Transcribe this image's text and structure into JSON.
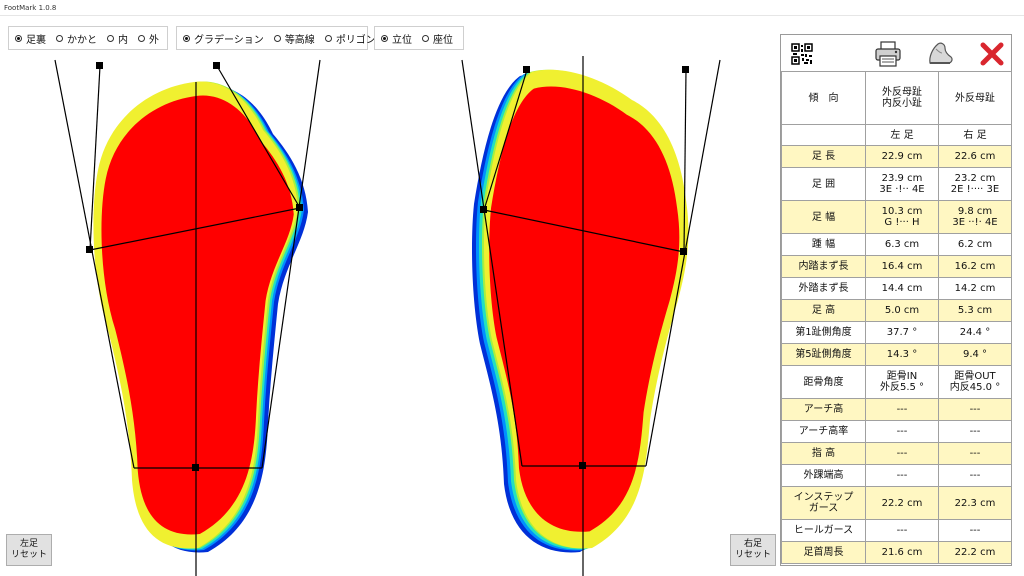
{
  "window": {
    "title": "FootMark 1.0.8"
  },
  "view_options": [
    {
      "label": "足裏",
      "selected": true
    },
    {
      "label": "かかと",
      "selected": false
    },
    {
      "label": "内",
      "selected": false
    },
    {
      "label": "外",
      "selected": false
    }
  ],
  "display_options": [
    {
      "label": "グラデーション",
      "selected": true
    },
    {
      "label": "等高線",
      "selected": false
    },
    {
      "label": "ポリゴン",
      "selected": false
    }
  ],
  "posture_options": [
    {
      "label": "立位",
      "selected": true
    },
    {
      "label": "座位",
      "selected": false
    }
  ],
  "buttons": {
    "left_reset": [
      "左足",
      "リセット"
    ],
    "right_reset": [
      "右足",
      "リセット"
    ]
  },
  "toolbar_icons": [
    "qr-code-icon",
    "print-icon",
    "shoe-icon",
    "close-icon"
  ],
  "colors": {
    "close_red": "#d9262e",
    "highlight_row": "#fff7c2",
    "foot_fill": "#ff0000"
  },
  "table": {
    "header": {
      "label": "傾　向",
      "left": [
        "外反母趾",
        "内反小趾"
      ],
      "right": [
        "外反母趾"
      ]
    },
    "sides": {
      "label": "",
      "left": "左 足",
      "right": "右 足"
    },
    "rows": [
      {
        "label": "足 長",
        "left": [
          "22.9 cm"
        ],
        "right": [
          "22.6 cm"
        ],
        "highlight": true
      },
      {
        "label": "足 囲",
        "left": [
          "23.9 cm",
          "3E ·!·· 4E"
        ],
        "right": [
          "23.2 cm",
          "2E !···· 3E"
        ],
        "highlight": false
      },
      {
        "label": "足 幅",
        "left": [
          "10.3 cm",
          "G !··· H"
        ],
        "right": [
          "9.8 cm",
          "3E ··!· 4E"
        ],
        "highlight": true
      },
      {
        "label": "踵 幅",
        "left": [
          "6.3 cm"
        ],
        "right": [
          "6.2 cm"
        ],
        "highlight": false
      },
      {
        "label": "内踏まず長",
        "left": [
          "16.4 cm"
        ],
        "right": [
          "16.2 cm"
        ],
        "highlight": true
      },
      {
        "label": "外踏まず長",
        "left": [
          "14.4 cm"
        ],
        "right": [
          "14.2 cm"
        ],
        "highlight": false
      },
      {
        "label": "足 高",
        "left": [
          "5.0 cm"
        ],
        "right": [
          "5.3 cm"
        ],
        "highlight": true
      },
      {
        "label": "第1趾側角度",
        "left": [
          "37.7 °"
        ],
        "right": [
          "24.4 °"
        ],
        "highlight": false
      },
      {
        "label": "第5趾側角度",
        "left": [
          "14.3 °"
        ],
        "right": [
          "9.4 °"
        ],
        "highlight": true
      },
      {
        "label": "距骨角度",
        "left": [
          "距骨IN",
          "外反5.5 °"
        ],
        "right": [
          "距骨OUT",
          "内反45.0 °"
        ],
        "highlight": false
      },
      {
        "label": "アーチ高",
        "left": [
          "---"
        ],
        "right": [
          "---"
        ],
        "highlight": true
      },
      {
        "label": "アーチ高率",
        "left": [
          "---"
        ],
        "right": [
          "---"
        ],
        "highlight": false
      },
      {
        "label": "指 高",
        "left": [
          "---"
        ],
        "right": [
          "---"
        ],
        "highlight": true
      },
      {
        "label": "外踝端高",
        "left": [
          "---"
        ],
        "right": [
          "---"
        ],
        "highlight": false
      },
      {
        "label": "インステップ\nガース",
        "left": [
          "22.2 cm"
        ],
        "right": [
          "22.3 cm"
        ],
        "highlight": true
      },
      {
        "label": "ヒールガース",
        "left": [
          "---"
        ],
        "right": [
          "---"
        ],
        "highlight": false
      },
      {
        "label": "足首周長",
        "left": [
          "21.6 cm"
        ],
        "right": [
          "22.2 cm"
        ],
        "highlight": true
      }
    ]
  }
}
